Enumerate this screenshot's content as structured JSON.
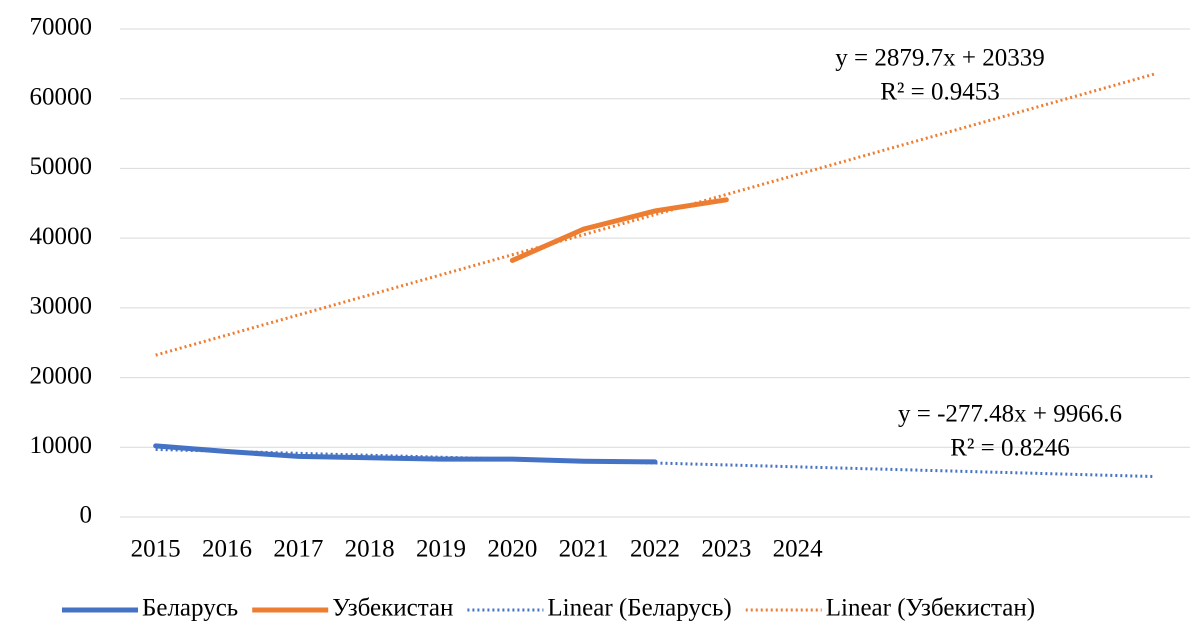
{
  "chart_data": {
    "type": "line",
    "categories": [
      "2015",
      "2016",
      "2017",
      "2018",
      "2019",
      "2020",
      "2021",
      "2022",
      "2023",
      "2024",
      null,
      null,
      null,
      null,
      null
    ],
    "series": [
      {
        "name": "Беларусь",
        "color": "#4472c4",
        "style": "solid",
        "values": [
          10200,
          9400,
          8700,
          8500,
          8300,
          8300,
          8000,
          7900,
          null,
          null,
          null,
          null,
          null,
          null,
          null
        ]
      },
      {
        "name": "Узбекистан",
        "color": "#ed7d31",
        "style": "solid",
        "values": [
          null,
          null,
          null,
          null,
          null,
          36800,
          41300,
          43900,
          45500,
          null,
          null,
          null,
          null,
          null,
          null
        ]
      },
      {
        "name": "Linear (Беларусь)",
        "color": "#4472c4",
        "style": "dotted",
        "values": [
          9689,
          9412,
          9134,
          8857,
          8579,
          8302,
          8024,
          7747,
          7469,
          7192,
          6914,
          6637,
          6359,
          6082,
          5804
        ]
      },
      {
        "name": "Linear (Узбекистан)",
        "color": "#ed7d31",
        "style": "dotted",
        "values": [
          23219,
          26098,
          28978,
          31858,
          34738,
          37617,
          40497,
          43377,
          46256,
          49136,
          52016,
          54895,
          57775,
          60655,
          63535
        ]
      }
    ],
    "annotations": [
      "y = 2879.7x + 20339",
      "R² = 0.9453",
      "y = -277.48x + 9966.6",
      "R² = 0.8246"
    ],
    "ylim": [
      0,
      70000
    ],
    "yticks": [
      0,
      10000,
      20000,
      30000,
      40000,
      50000,
      60000,
      70000
    ],
    "grid": true,
    "legend": "bottom"
  }
}
